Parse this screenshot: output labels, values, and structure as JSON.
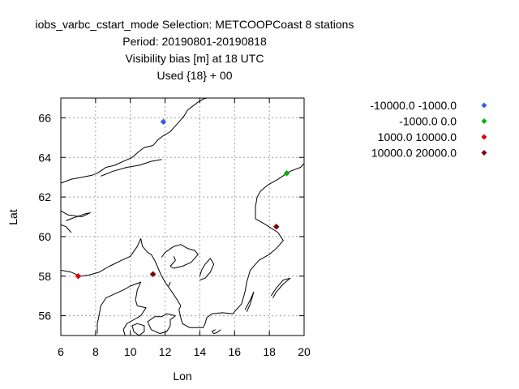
{
  "chart_data": {
    "type": "scatter",
    "title_lines": [
      "iobs_varbc_cstart_mode   Selection: METCOOPCoast      8 stations",
      "Period: 20190801-20190818",
      "Visibility bias [m] at  18 UTC",
      "Used {18} + 00"
    ],
    "xlabel": "Lon",
    "ylabel": "Lat",
    "xlim": [
      6,
      20
    ],
    "ylim": [
      55,
      67
    ],
    "x_ticks": [
      6,
      8,
      10,
      12,
      14,
      16,
      18,
      20
    ],
    "y_ticks": [
      56,
      58,
      60,
      62,
      64,
      66
    ],
    "grid": true,
    "legend_position": "right",
    "series": [
      {
        "name": "-10000.0 -1000.0",
        "color": "#3060e0",
        "points": [
          {
            "x": 11.9,
            "y": 65.8
          }
        ]
      },
      {
        "name": "-1000.0 0.0",
        "color": "#00b000",
        "points": [
          {
            "x": 19.0,
            "y": 63.2
          }
        ]
      },
      {
        "name": "1000.0 10000.0",
        "color": "#e00000",
        "points": [
          {
            "x": 7.0,
            "y": 58.0
          }
        ]
      },
      {
        "name": "10000.0 20000.0",
        "color": "#800000",
        "points": [
          {
            "x": 11.3,
            "y": 58.1
          },
          {
            "x": 18.4,
            "y": 60.5
          }
        ]
      }
    ],
    "coastlines": [
      [
        [
          11.3,
          64.6
        ],
        [
          11.6,
          64.9
        ],
        [
          11.9,
          65.1
        ],
        [
          12.3,
          65.3
        ],
        [
          12.6,
          65.6
        ],
        [
          12.9,
          65.9
        ],
        [
          13.1,
          66.1
        ],
        [
          13.3,
          66.4
        ],
        [
          13.6,
          66.6
        ],
        [
          13.9,
          66.8
        ],
        [
          14.2,
          66.95
        ],
        [
          14.4,
          67.0
        ]
      ],
      [
        [
          8.1,
          63.2
        ],
        [
          8.6,
          63.5
        ],
        [
          9.1,
          63.6
        ],
        [
          9.6,
          63.8
        ],
        [
          10.1,
          64.0
        ],
        [
          10.5,
          64.3
        ],
        [
          10.8,
          64.5
        ],
        [
          11.3,
          64.6
        ]
      ],
      [
        [
          8.3,
          63.05
        ],
        [
          9.0,
          63.3
        ],
        [
          9.8,
          63.5
        ],
        [
          10.5,
          63.6
        ],
        [
          11.2,
          63.8
        ],
        [
          11.8,
          63.9
        ]
      ],
      [
        [
          6.0,
          62.7
        ],
        [
          6.6,
          62.9
        ],
        [
          7.2,
          63.0
        ],
        [
          7.8,
          63.1
        ],
        [
          8.1,
          63.2
        ]
      ],
      [
        [
          6.0,
          61.3
        ],
        [
          6.4,
          61.1
        ],
        [
          7.2,
          61.0
        ],
        [
          7.7,
          61.2
        ],
        [
          7.4,
          61.15
        ],
        [
          6.6,
          60.9
        ],
        [
          6.3,
          60.8
        ]
      ],
      [
        [
          6.0,
          60.6
        ],
        [
          6.3,
          60.5
        ],
        [
          6.6,
          60.2
        ]
      ],
      [
        [
          6.0,
          58.3
        ],
        [
          6.6,
          58.2
        ],
        [
          7.1,
          58.0
        ],
        [
          7.6,
          58.05
        ],
        [
          8.2,
          58.2
        ],
        [
          8.8,
          58.5
        ],
        [
          9.5,
          58.8
        ],
        [
          10.0,
          59.0
        ],
        [
          10.4,
          59.5
        ],
        [
          10.6,
          59.9
        ],
        [
          10.7,
          59.5
        ],
        [
          11.0,
          59.2
        ],
        [
          11.2,
          59.1
        ],
        [
          11.4,
          58.8
        ],
        [
          11.6,
          58.4
        ],
        [
          11.8,
          58.0
        ],
        [
          12.0,
          57.7
        ],
        [
          12.4,
          57.2
        ],
        [
          12.7,
          56.8
        ],
        [
          12.9,
          56.5
        ],
        [
          12.8,
          56.3
        ],
        [
          12.9,
          55.9
        ],
        [
          13.0,
          55.6
        ],
        [
          13.4,
          55.4
        ],
        [
          14.2,
          55.4
        ],
        [
          14.3,
          55.6
        ],
        [
          14.4,
          55.9
        ],
        [
          14.7,
          56.1
        ],
        [
          15.3,
          56.15
        ],
        [
          15.9,
          56.1
        ],
        [
          16.4,
          56.6
        ],
        [
          16.6,
          57.2
        ],
        [
          16.7,
          57.7
        ],
        [
          16.9,
          58.3
        ],
        [
          17.4,
          58.8
        ],
        [
          18.0,
          59.1
        ],
        [
          18.4,
          59.4
        ],
        [
          18.8,
          59.8
        ],
        [
          18.5,
          60.2
        ],
        [
          17.8,
          60.6
        ],
        [
          17.2,
          60.9
        ],
        [
          17.2,
          61.5
        ],
        [
          17.3,
          62.0
        ],
        [
          17.5,
          62.3
        ],
        [
          17.9,
          62.6
        ],
        [
          18.5,
          62.9
        ],
        [
          19.2,
          63.3
        ],
        [
          19.8,
          63.5
        ],
        [
          20.0,
          63.7
        ]
      ],
      [
        [
          16.7,
          56.2
        ],
        [
          16.9,
          56.6
        ],
        [
          17.1,
          57.2
        ],
        [
          16.9,
          56.8
        ],
        [
          16.6,
          56.3
        ]
      ],
      [
        [
          18.1,
          57.0
        ],
        [
          18.4,
          57.4
        ],
        [
          18.8,
          57.8
        ],
        [
          19.2,
          57.9
        ],
        [
          18.8,
          57.6
        ],
        [
          18.4,
          57.2
        ],
        [
          18.2,
          56.9
        ]
      ],
      [
        [
          8.1,
          55.1
        ],
        [
          8.1,
          55.6
        ],
        [
          8.2,
          56.0
        ],
        [
          8.3,
          56.5
        ],
        [
          8.6,
          56.9
        ],
        [
          9.1,
          57.1
        ],
        [
          9.6,
          57.3
        ],
        [
          10.0,
          57.5
        ],
        [
          10.6,
          57.7
        ],
        [
          10.4,
          57.3
        ],
        [
          10.3,
          56.8
        ],
        [
          10.4,
          56.5
        ],
        [
          10.9,
          56.4
        ],
        [
          10.6,
          56.0
        ],
        [
          10.2,
          55.8
        ],
        [
          9.8,
          55.6
        ],
        [
          9.6,
          55.3
        ],
        [
          9.7,
          55.0
        ]
      ],
      [
        [
          12.6,
          56.0
        ],
        [
          12.3,
          55.8
        ],
        [
          12.3,
          55.5
        ],
        [
          12.1,
          55.2
        ],
        [
          11.7,
          55.1
        ],
        [
          11.2,
          55.3
        ],
        [
          11.0,
          55.7
        ],
        [
          11.4,
          55.95
        ],
        [
          11.8,
          55.95
        ],
        [
          12.1,
          56.1
        ],
        [
          12.6,
          56.0
        ]
      ],
      [
        [
          10.5,
          55.0
        ],
        [
          10.2,
          55.2
        ],
        [
          10.1,
          55.5
        ],
        [
          10.4,
          55.6
        ],
        [
          10.8,
          55.5
        ],
        [
          10.8,
          55.2
        ],
        [
          10.5,
          55.0
        ]
      ],
      [
        [
          15.2,
          55.3
        ],
        [
          15.0,
          55.15
        ],
        [
          14.8,
          55.1
        ],
        [
          14.7,
          55.2
        ],
        [
          14.9,
          55.3
        ]
      ],
      [
        [
          12.2,
          57.5
        ],
        [
          12.3,
          57.7
        ]
      ],
      [
        [
          11.8,
          58.95
        ],
        [
          12.0,
          59.2
        ],
        [
          12.5,
          59.5
        ],
        [
          12.9,
          59.6
        ],
        [
          13.3,
          59.4
        ],
        [
          13.7,
          59.3
        ],
        [
          13.9,
          59.1
        ],
        [
          13.5,
          58.7
        ],
        [
          13.0,
          58.5
        ],
        [
          12.5,
          58.4
        ],
        [
          12.3,
          58.5
        ],
        [
          12.6,
          58.8
        ],
        [
          12.5,
          59.0
        ]
      ],
      [
        [
          14.0,
          58.0
        ],
        [
          14.1,
          58.3
        ],
        [
          14.3,
          58.6
        ],
        [
          14.6,
          58.9
        ],
        [
          14.8,
          58.6
        ],
        [
          14.6,
          58.2
        ],
        [
          14.3,
          57.9
        ],
        [
          14.0,
          57.8
        ]
      ]
    ]
  }
}
